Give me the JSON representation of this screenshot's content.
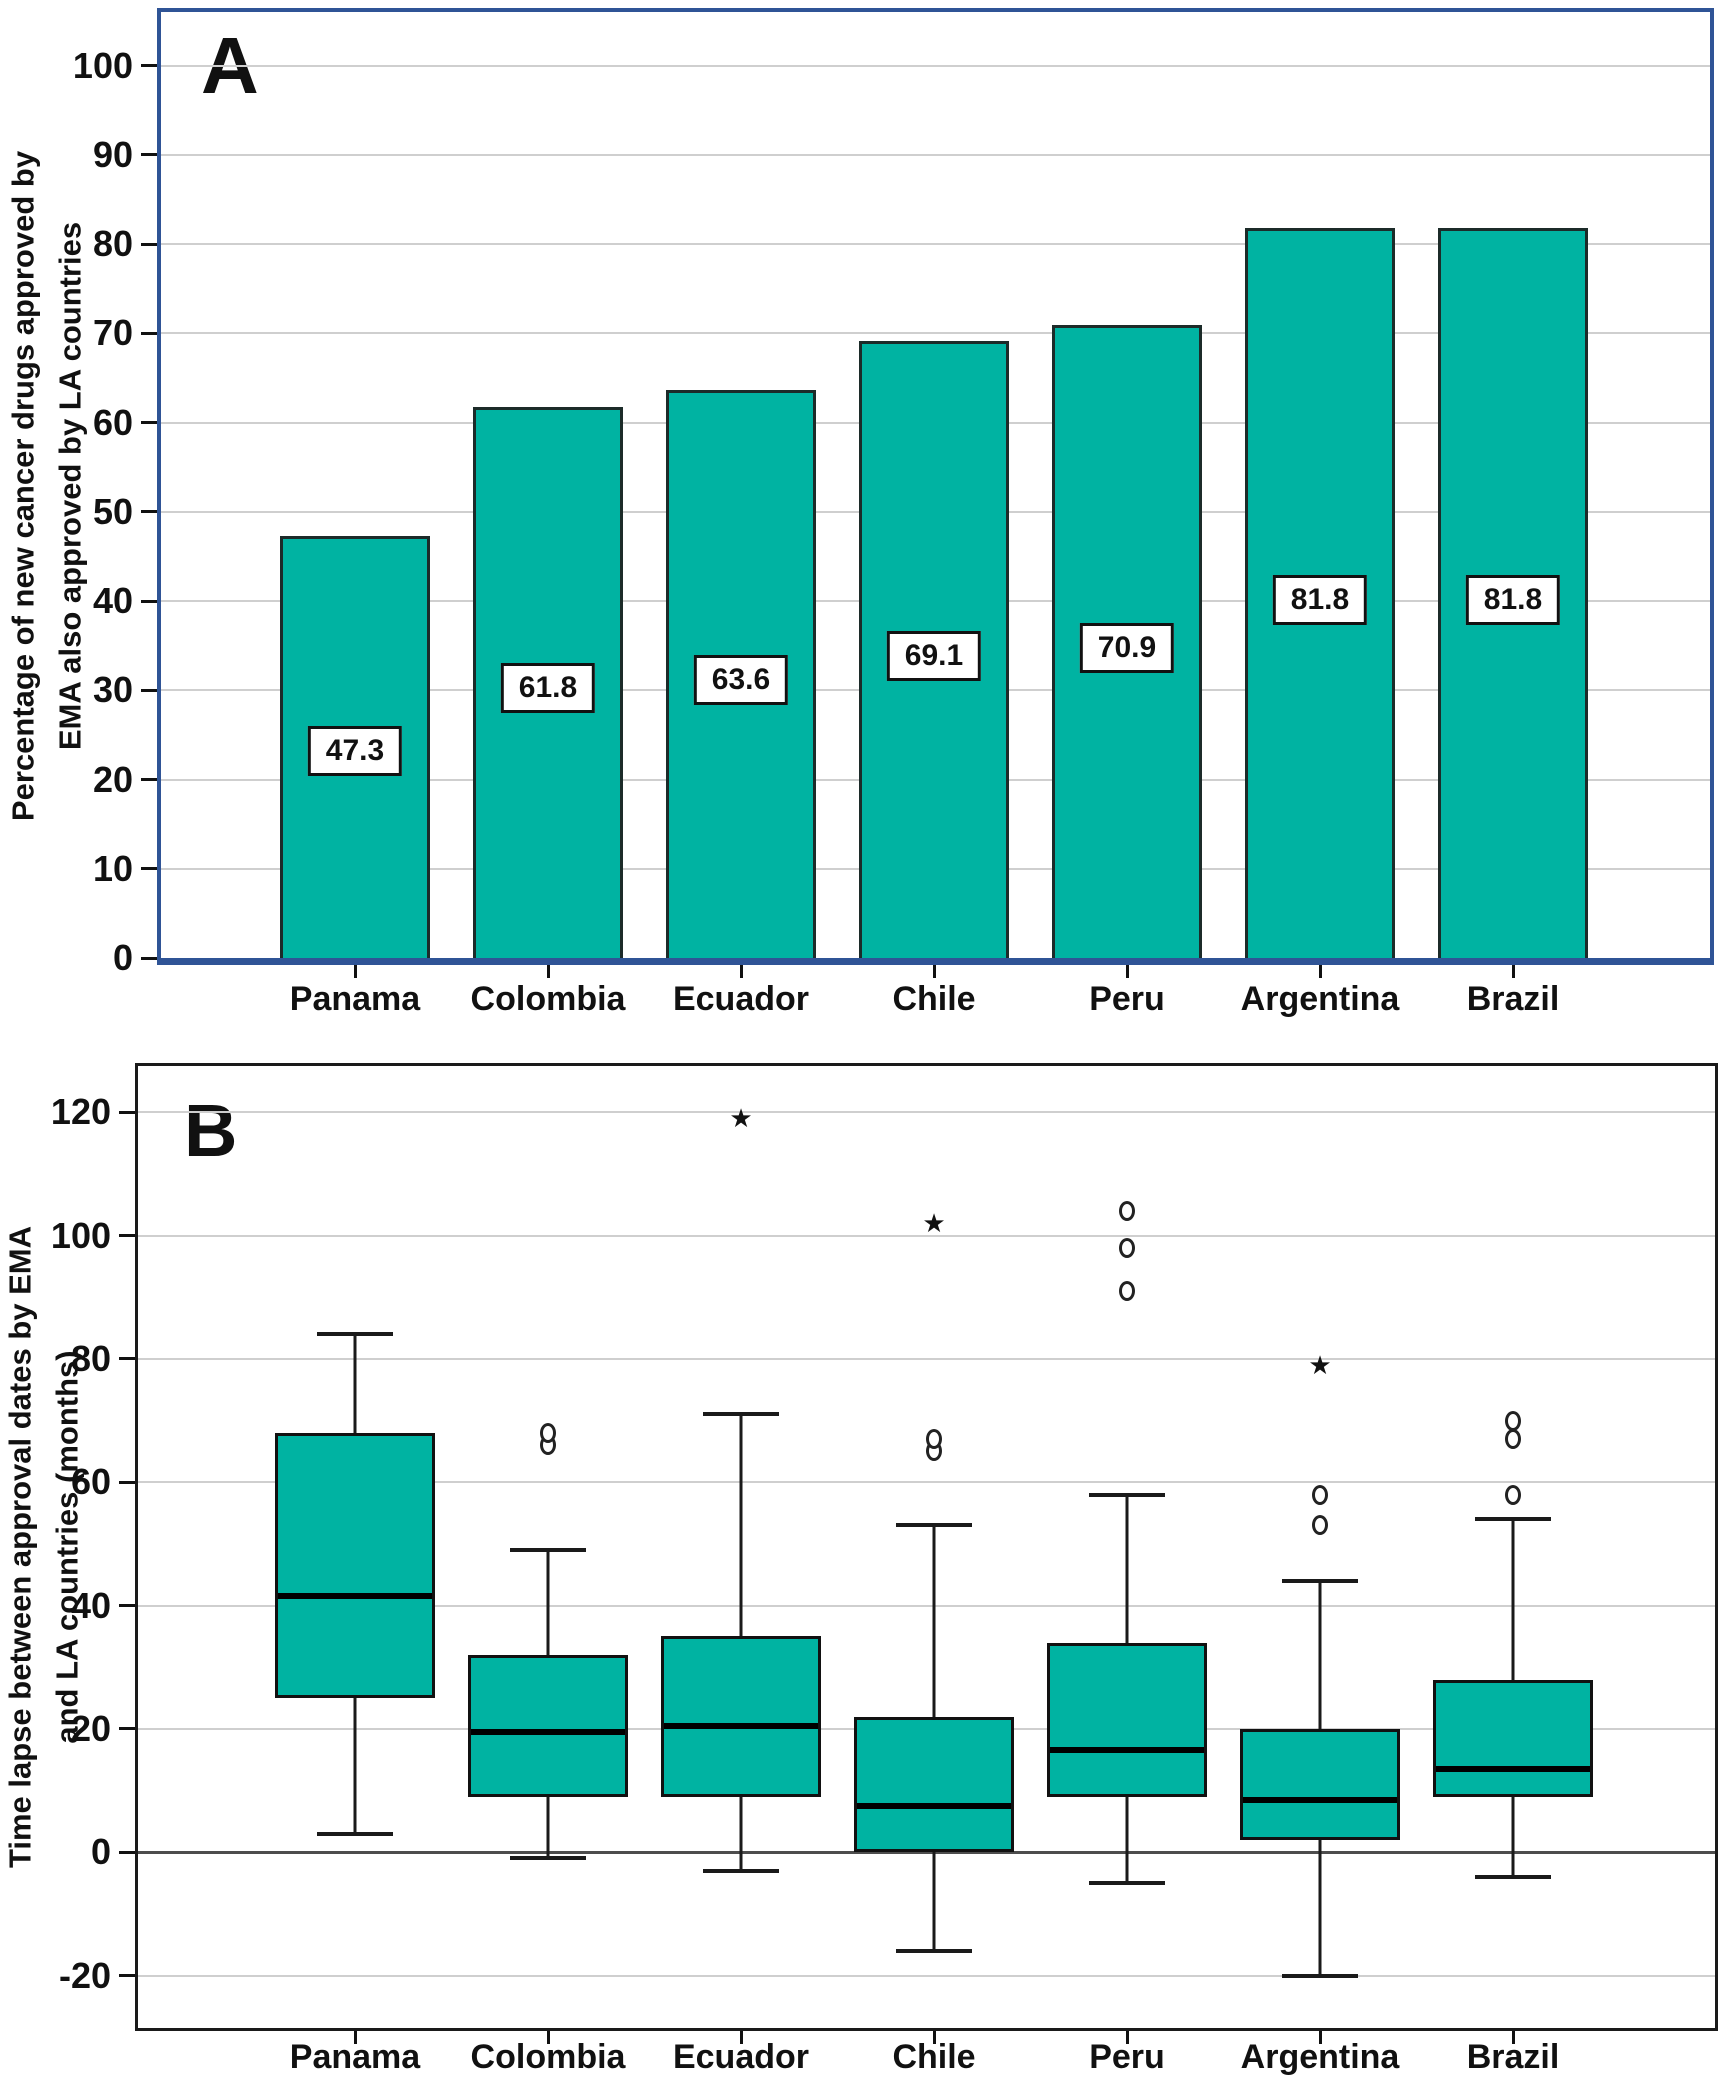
{
  "figure_colors": {
    "teal_fill": "#00b3a2",
    "bar_border": "#1c2b29",
    "panel_a_frame": "#2f5496",
    "panel_b_frame": "#1a1a1a",
    "gridline": "#cfcfcf",
    "zero_line": "#4d4d4d"
  },
  "chart_data": [
    {
      "type": "bar",
      "panel": "A",
      "ylabel_line1": "Percentage of new cancer drugs approved by",
      "ylabel_line2": "EMA also approved by LA countries",
      "categories": [
        "Panama",
        "Colombia",
        "Ecuador",
        "Chile",
        "Peru",
        "Argentina",
        "Brazil"
      ],
      "values": [
        47.3,
        61.8,
        63.6,
        69.1,
        70.9,
        81.8,
        81.8
      ],
      "value_labels": [
        "47.3",
        "61.8",
        "63.6",
        "69.1",
        "70.9",
        "81.8",
        "81.8"
      ],
      "yticks": [
        0,
        10,
        20,
        30,
        40,
        50,
        60,
        70,
        80,
        90,
        100
      ],
      "axis_range": [
        0,
        100
      ],
      "grid": "horizontal",
      "legend": "none"
    },
    {
      "type": "box",
      "panel": "B",
      "ylabel_line1": "Time lapse between approval dates by EMA",
      "ylabel_line2": "and LA countries (months)",
      "categories": [
        "Panama",
        "Colombia",
        "Ecuador",
        "Chile",
        "Peru",
        "Argentina",
        "Brazil"
      ],
      "yticks": [
        -20,
        0,
        20,
        40,
        60,
        80,
        100,
        120
      ],
      "axis_range": [
        -20,
        120
      ],
      "grid": "horizontal",
      "zero_line": true,
      "legend": "none",
      "series": [
        {
          "name": "Panama",
          "min": 3,
          "q1": 25,
          "median": 42,
          "q3": 68,
          "max": 84,
          "outliers_circle": [],
          "outliers_star": []
        },
        {
          "name": "Colombia",
          "min": -1,
          "q1": 9,
          "median": 20,
          "q3": 32,
          "max": 49,
          "outliers_circle": [
            66,
            68
          ],
          "outliers_star": []
        },
        {
          "name": "Ecuador",
          "min": -3,
          "q1": 9,
          "median": 21,
          "q3": 35,
          "max": 71,
          "outliers_circle": [],
          "outliers_star": [
            119
          ]
        },
        {
          "name": "Chile",
          "min": -16,
          "q1": 0,
          "median": 8,
          "q3": 22,
          "max": 53,
          "outliers_circle": [
            65,
            67
          ],
          "outliers_star": [
            102
          ]
        },
        {
          "name": "Peru",
          "min": -5,
          "q1": 9,
          "median": 17,
          "q3": 34,
          "max": 58,
          "outliers_circle": [
            91,
            98,
            104
          ],
          "outliers_star": []
        },
        {
          "name": "Argentina",
          "min": -20,
          "q1": 2,
          "median": 9,
          "q3": 20,
          "max": 44,
          "outliers_circle": [
            53,
            58
          ],
          "outliers_star": [
            79
          ]
        },
        {
          "name": "Brazil",
          "min": -4,
          "q1": 9,
          "median": 14,
          "q3": 28,
          "max": 54,
          "outliers_circle": [
            58,
            67,
            70
          ],
          "outliers_star": []
        }
      ]
    }
  ]
}
